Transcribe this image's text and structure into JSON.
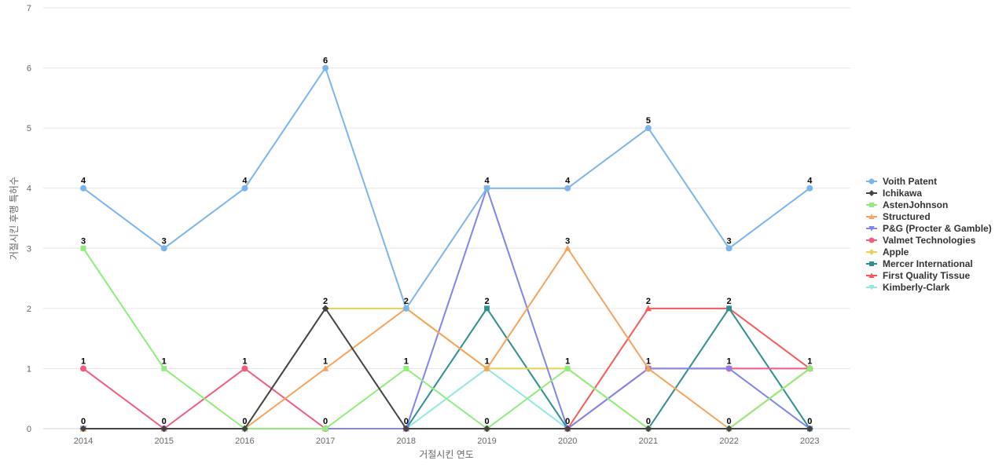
{
  "chart_data": {
    "type": "line",
    "xlabel": "거절시킨 연도",
    "ylabel": "거절시킨 후행 특허수",
    "ylim": [
      0,
      7
    ],
    "yticks": [
      0,
      1,
      2,
      3,
      4,
      5,
      6,
      7
    ],
    "grid": true,
    "legend_position": "right",
    "categories": [
      "2014",
      "2015",
      "2016",
      "2017",
      "2018",
      "2019",
      "2020",
      "2021",
      "2022",
      "2023"
    ],
    "series": [
      {
        "name": "Voith Patent",
        "color": "#7cb5ec",
        "marker": "circle",
        "values": [
          4,
          3,
          4,
          6,
          2,
          4,
          4,
          5,
          3,
          4
        ]
      },
      {
        "name": "Ichikawa",
        "color": "#434348",
        "marker": "diamond",
        "values": [
          0,
          0,
          0,
          2,
          0,
          0,
          0,
          0,
          0,
          0
        ]
      },
      {
        "name": "AstenJohnson",
        "color": "#90ed7d",
        "marker": "square",
        "values": [
          3,
          1,
          0,
          0,
          1,
          0,
          1,
          0,
          0,
          1
        ]
      },
      {
        "name": "Structured",
        "color": "#f7a35c",
        "marker": "triangle",
        "values": [
          0,
          0,
          0,
          1,
          2,
          1,
          3,
          1,
          0,
          1
        ]
      },
      {
        "name": "P&G (Procter & Gamble)",
        "color": "#8085e9",
        "marker": "triangle-down",
        "values": [
          0,
          0,
          0,
          0,
          0,
          4,
          0,
          1,
          1,
          0
        ]
      },
      {
        "name": "Valmet Technologies",
        "color": "#f15c80",
        "marker": "circle",
        "values": [
          1,
          0,
          1,
          0,
          0,
          0,
          0,
          1,
          1,
          1
        ]
      },
      {
        "name": "Apple",
        "color": "#e4d354",
        "marker": "diamond",
        "values": [
          0,
          0,
          0,
          2,
          2,
          1,
          1,
          0,
          0,
          1
        ]
      },
      {
        "name": "Mercer International",
        "color": "#2b908f",
        "marker": "square",
        "values": [
          0,
          0,
          0,
          0,
          0,
          2,
          0,
          0,
          2,
          0
        ]
      },
      {
        "name": "First Quality Tissue",
        "color": "#f45b5b",
        "marker": "triangle",
        "values": [
          0,
          0,
          0,
          0,
          0,
          0,
          0,
          2,
          2,
          1
        ]
      },
      {
        "name": "Kimberly-Clark",
        "color": "#91e8e1",
        "marker": "triangle-down",
        "values": [
          0,
          0,
          0,
          0,
          0,
          1,
          0,
          0,
          0,
          0
        ]
      }
    ],
    "data_labels": [
      {
        "x": "2014",
        "y": 4
      },
      {
        "x": "2014",
        "y": 3
      },
      {
        "x": "2014",
        "y": 1
      },
      {
        "x": "2014",
        "y": 0
      },
      {
        "x": "2015",
        "y": 3
      },
      {
        "x": "2015",
        "y": 1
      },
      {
        "x": "2015",
        "y": 0
      },
      {
        "x": "2016",
        "y": 4
      },
      {
        "x": "2016",
        "y": 1
      },
      {
        "x": "2016",
        "y": 0
      },
      {
        "x": "2017",
        "y": 6
      },
      {
        "x": "2017",
        "y": 2
      },
      {
        "x": "2017",
        "y": 1
      },
      {
        "x": "2017",
        "y": 0
      },
      {
        "x": "2018",
        "y": 2
      },
      {
        "x": "2018",
        "y": 1
      },
      {
        "x": "2018",
        "y": 0
      },
      {
        "x": "2019",
        "y": 4
      },
      {
        "x": "2019",
        "y": 2
      },
      {
        "x": "2019",
        "y": 1
      },
      {
        "x": "2019",
        "y": 0
      },
      {
        "x": "2020",
        "y": 4
      },
      {
        "x": "2020",
        "y": 3
      },
      {
        "x": "2020",
        "y": 1
      },
      {
        "x": "2020",
        "y": 0
      },
      {
        "x": "2021",
        "y": 5
      },
      {
        "x": "2021",
        "y": 2
      },
      {
        "x": "2021",
        "y": 1
      },
      {
        "x": "2021",
        "y": 0
      },
      {
        "x": "2022",
        "y": 3
      },
      {
        "x": "2022",
        "y": 2
      },
      {
        "x": "2022",
        "y": 1
      },
      {
        "x": "2022",
        "y": 0
      },
      {
        "x": "2023",
        "y": 4
      },
      {
        "x": "2023",
        "y": 1
      },
      {
        "x": "2023",
        "y": 0
      }
    ]
  }
}
